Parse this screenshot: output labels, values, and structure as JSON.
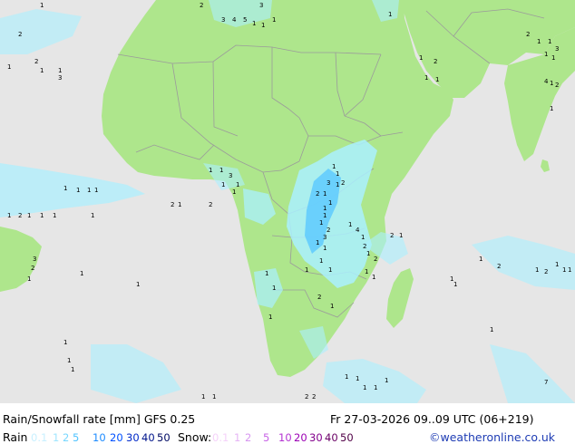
{
  "title": "Rain/Snowfall rate [mm] GFS 0.25",
  "datetime": "Fr 27-03-2026 09..09 UTC (06+219)",
  "rain_legend": {
    "label": "Rain",
    "values": [
      "0.1",
      "1",
      "2",
      "5",
      "10",
      "20",
      "30",
      "40",
      "50"
    ],
    "colors": [
      "#c8f0ff",
      "#a0e6ff",
      "#78d7ff",
      "#50c3ff",
      "#1e8cff",
      "#0050ff",
      "#0028c8",
      "#00148c",
      "#000a64"
    ]
  },
  "snow_legend": {
    "label": "Snow:",
    "values": [
      "0.1",
      "1",
      "2",
      "5",
      "10",
      "20",
      "30",
      "40",
      "50"
    ],
    "colors": [
      "#f5d2fa",
      "#e6b4f5",
      "#d796f0",
      "#c864e6",
      "#b432d2",
      "#9b00b4",
      "#82008c",
      "#690064",
      "#500046"
    ]
  },
  "credit": "©weatheronline.co.uk",
  "colors": {
    "land": "#aee68c",
    "sea": "#e6e6e6",
    "border": "#9b9b9b",
    "rain_light": "#aaf0ff",
    "rain_mid": "#5ac8ff"
  },
  "map_labels": [
    "1",
    "2",
    "3",
    "4",
    "5",
    "1",
    "1",
    "1",
    "3",
    "1",
    "2",
    "1",
    "1",
    "3",
    "1",
    "1",
    "1",
    "2",
    "1",
    "1",
    "4",
    "1",
    "2",
    "1",
    "2",
    "1",
    "1",
    "3",
    "1",
    "2",
    "1",
    "1",
    "3",
    "1",
    "1",
    "1",
    "2",
    "2",
    "1",
    "1",
    "1",
    "3",
    "1",
    "2",
    "2",
    "1",
    "1",
    "1",
    "1",
    "1",
    "2",
    "3",
    "1",
    "1",
    "1",
    "1",
    "1",
    "4",
    "1",
    "2",
    "1",
    "1",
    "1",
    "2",
    "2",
    "1",
    "1",
    "1",
    "1",
    "2",
    "1",
    "1",
    "1",
    "1",
    "2",
    "1",
    "1",
    "1",
    "1",
    "1",
    "2",
    "1",
    "1",
    "1",
    "1",
    "3",
    "2",
    "1",
    "1",
    "1",
    "1",
    "1",
    "1",
    "1",
    "2",
    "1",
    "1",
    "1",
    "1",
    "1",
    "1",
    "1",
    "7",
    "1",
    "1",
    "2",
    "2",
    "1",
    "1",
    "1"
  ]
}
